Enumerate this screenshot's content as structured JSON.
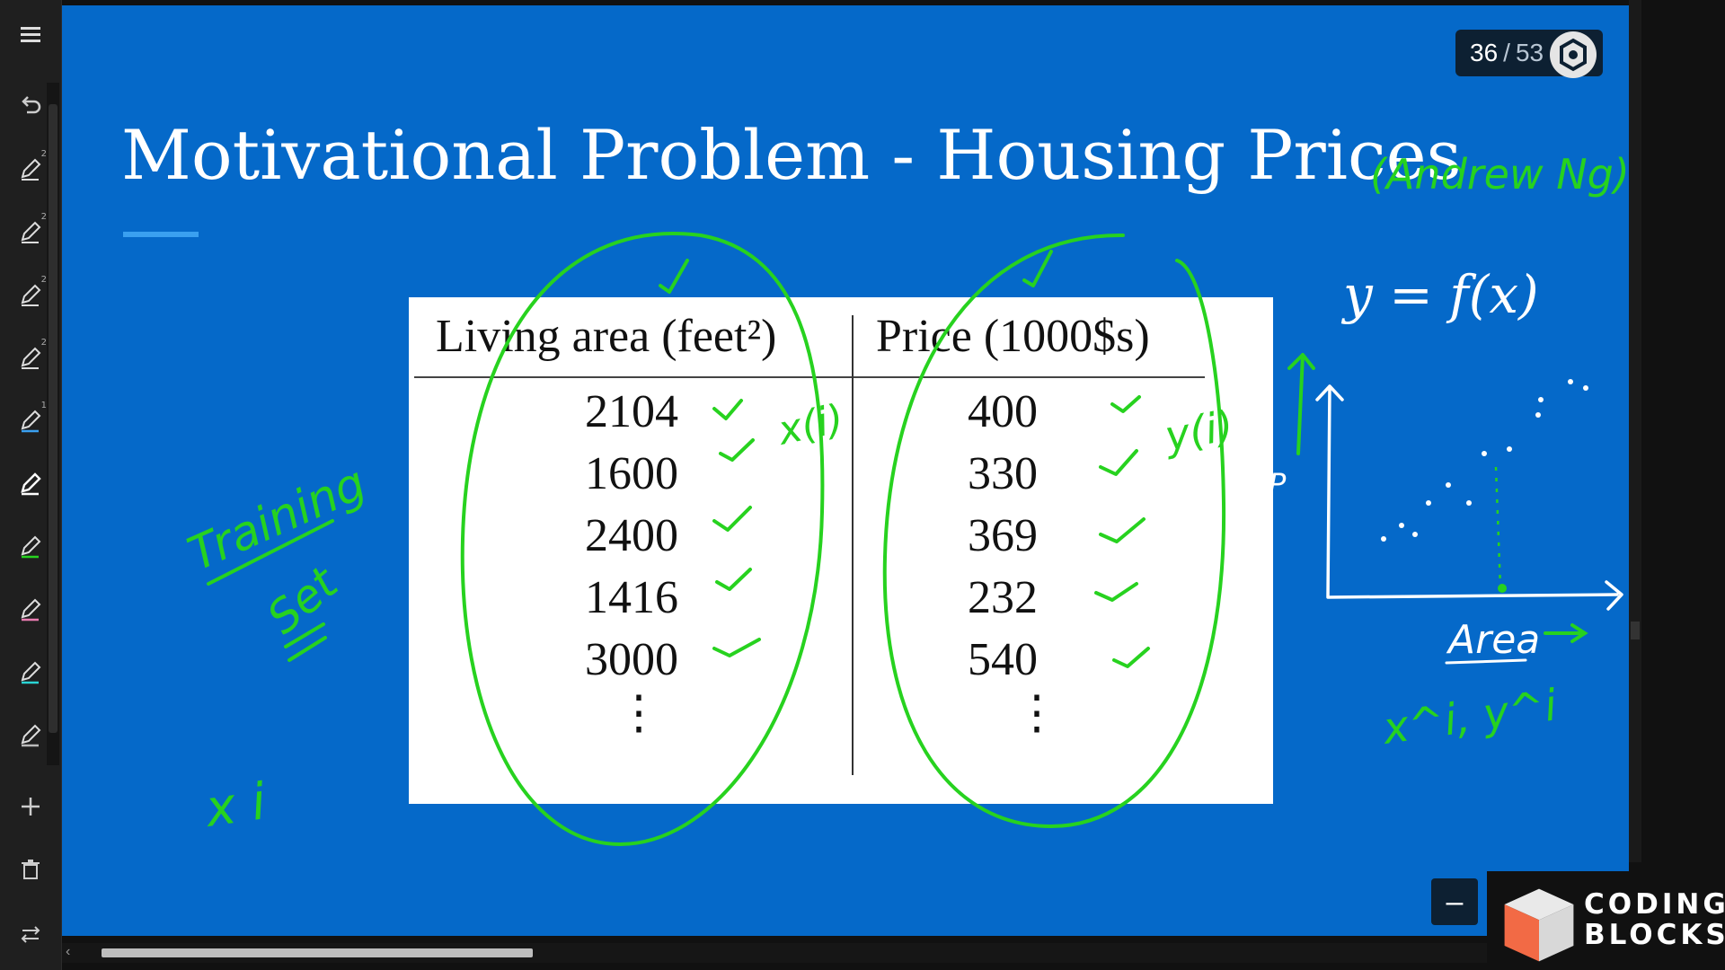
{
  "slide": {
    "title": "Motivational Problem - Housing Prices",
    "table": {
      "headers": [
        "Living area (feet²)",
        "Price (1000$s)"
      ],
      "rows": [
        {
          "area": "2104",
          "price": "400"
        },
        {
          "area": "1600",
          "price": "330"
        },
        {
          "area": "2400",
          "price": "369"
        },
        {
          "area": "1416",
          "price": "232"
        },
        {
          "area": "3000",
          "price": "540"
        }
      ],
      "continuation": "⋮"
    }
  },
  "pager": {
    "current": "36",
    "separator": "/",
    "total": "53"
  },
  "logo": {
    "line1": "CODING",
    "line2": "BLOCKS"
  },
  "handwriting": {
    "author_note": "(Andrew Ng)",
    "formula": "y = f(x)",
    "training_set": [
      "Training",
      "Set"
    ],
    "x_i": "x(i)",
    "y_i": "y(i)",
    "axis_y": "P",
    "axis_x": "Area",
    "xy_pair": "x^i, y^i",
    "x_left": "x i"
  },
  "toolbar": {
    "tools": [
      "menu-icon",
      "undo-icon",
      "pen-icon",
      "pen-icon",
      "pen-icon",
      "pen-icon",
      "pen-icon",
      "pen-icon",
      "pen-icon",
      "pen-icon",
      "pen-icon",
      "pen-icon",
      "plus-icon",
      "trash-icon",
      "swap-icon"
    ],
    "pen_sub_labels": [
      "2",
      "2",
      "2",
      "2",
      "1"
    ]
  },
  "colors": {
    "slide_bg": "#0569c9",
    "ink_green": "#27d21f",
    "ink_white": "#ffffff",
    "pager_bg": "#0d2032",
    "title_accent": "#3aa0f0"
  }
}
